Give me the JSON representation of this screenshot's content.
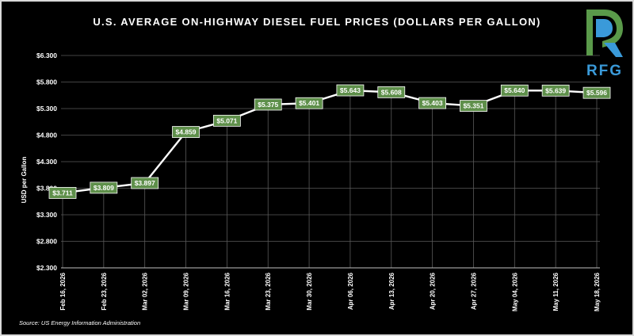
{
  "chart_data": {
    "type": "line",
    "title": "U.S. AVERAGE ON-HIGHWAY DIESEL FUEL PRICES (DOLLARS PER GALLON)",
    "ylabel": "USD per Gallon",
    "xlabel": "",
    "categories": [
      "Feb 16, 2026",
      "Feb 23, 2026",
      "Mar 02, 2026",
      "Mar 09, 2026",
      "Mar 16, 2026",
      "Mar 23, 2026",
      "Mar 30, 2026",
      "Apr 06, 2026",
      "Apr 13, 2026",
      "Apr 20, 2026",
      "Apr 27, 2026",
      "May 04, 2026",
      "May 11, 2026",
      "May 18, 2026"
    ],
    "values": [
      3.711,
      3.809,
      3.897,
      4.859,
      5.071,
      5.375,
      5.401,
      5.643,
      5.608,
      5.403,
      5.351,
      5.64,
      5.639,
      5.596
    ],
    "data_labels": [
      "$3.711",
      "$3.809",
      "$3.897",
      "$4.859",
      "$5.071",
      "$5.375",
      "$5.401",
      "$5.643",
      "$5.608",
      "$5.403",
      "$5.351",
      "$5.640",
      "$5.639",
      "$5.596"
    ],
    "y_ticks": [
      "$2.300",
      "$2.800",
      "$3.300",
      "$3.800",
      "$4.300",
      "$4.800",
      "$5.300",
      "$5.800",
      "$6.300"
    ],
    "ylim": [
      2.3,
      6.3
    ],
    "grid": "horizontal and vertical",
    "legend": "none"
  },
  "source": "Source: US Energy Information Administration",
  "logo": {
    "text": "RFG",
    "name": "RFG logo"
  },
  "colors": {
    "background": "#000000",
    "line": "#ffffff",
    "label_fill": "#5e8f4a",
    "grid": "#5a5a5a",
    "logo_green": "#5a9a4a",
    "logo_blue": "#3a9ad9"
  }
}
